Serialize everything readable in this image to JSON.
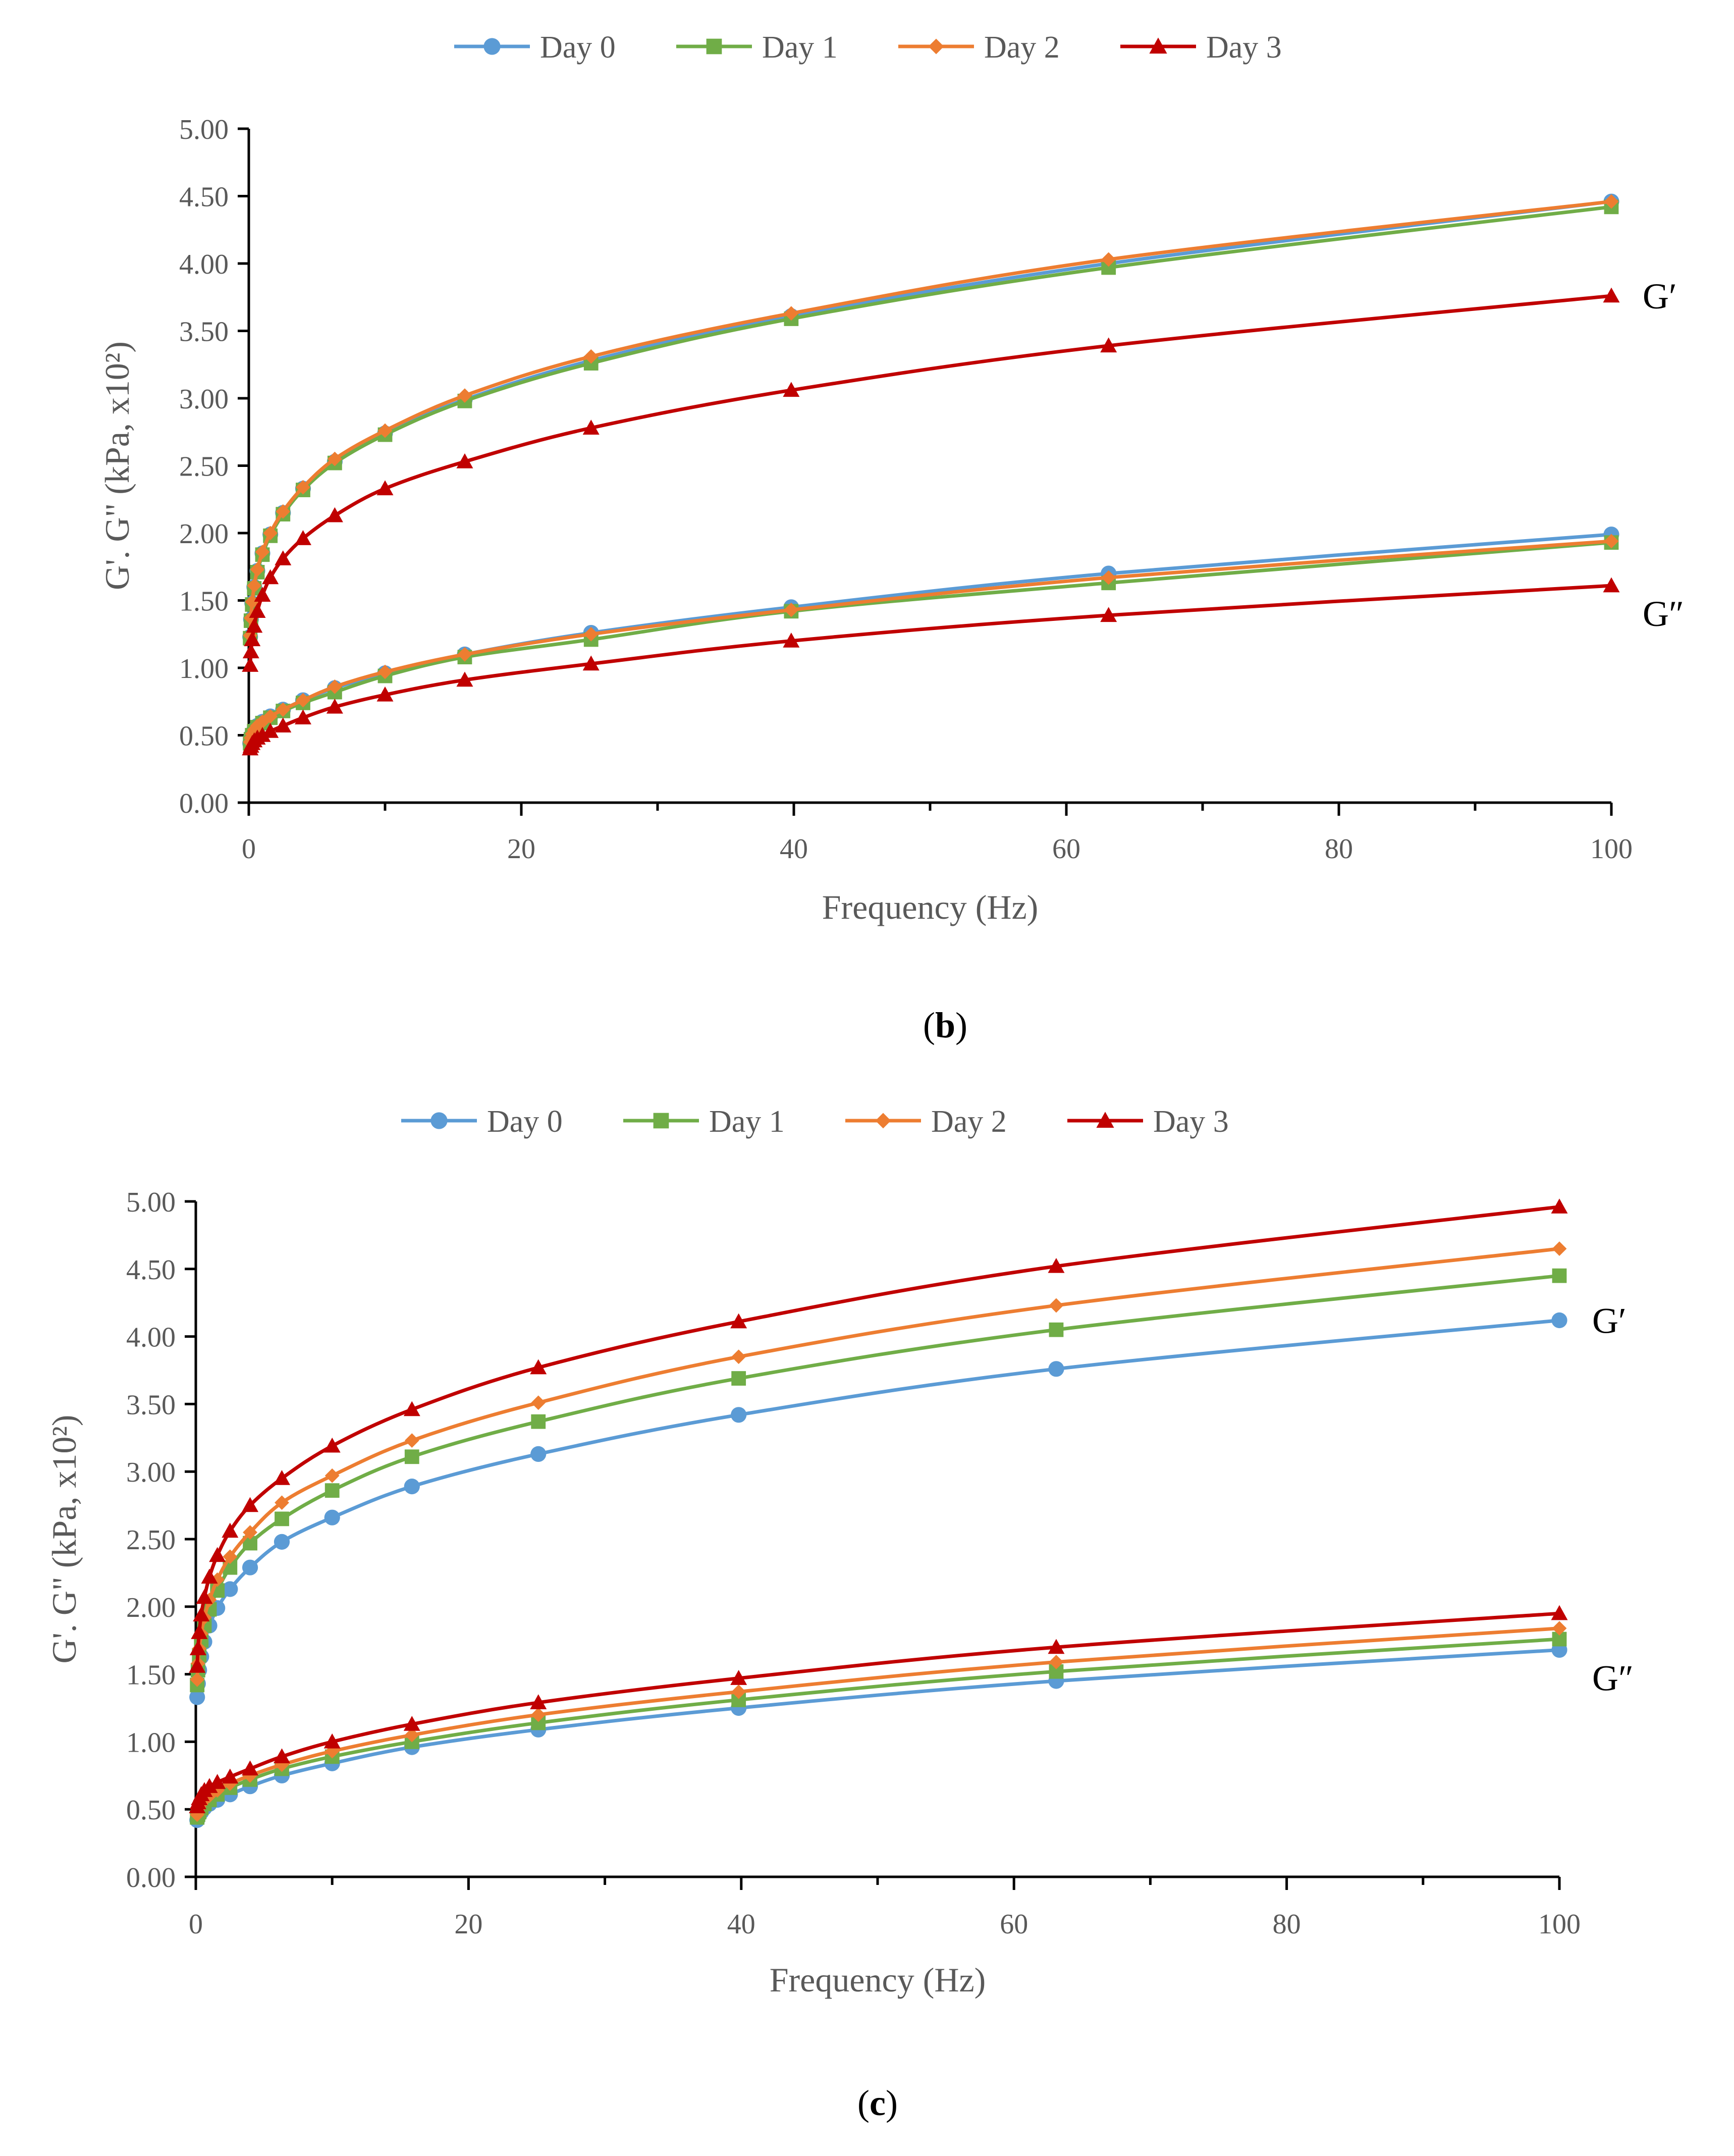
{
  "chart_data": [
    {
      "type": "line",
      "panel": "b",
      "caption_open": "(",
      "caption_letter": "b",
      "caption_close": ")",
      "xlabel": "Frequency (Hz)",
      "ylabel": "G'. G\" (kPa, x10²)",
      "xlim": [
        0,
        100
      ],
      "ylim": [
        0,
        5
      ],
      "xticks": [
        "0",
        "20",
        "40",
        "60",
        "80",
        "100"
      ],
      "yticks": [
        "0.00",
        "0.50",
        "1.00",
        "1.50",
        "2.00",
        "2.50",
        "3.00",
        "3.50",
        "4.00",
        "4.50",
        "5.00"
      ],
      "x": [
        0.1,
        0.16,
        0.25,
        0.4,
        0.63,
        1.0,
        1.58,
        2.51,
        3.98,
        6.31,
        10.0,
        15.85,
        25.12,
        39.81,
        63.1,
        100.0
      ],
      "curve_labels": {
        "g_prime": "G′",
        "g_double_prime": "G″"
      },
      "series": [
        {
          "name": "Day 0",
          "color": "#5B9BD5",
          "marker": "circle",
          "g_prime": [
            1.23,
            1.36,
            1.48,
            1.6,
            1.72,
            1.85,
            1.99,
            2.15,
            2.33,
            2.53,
            2.74,
            2.99,
            3.28,
            3.61,
            4.0,
            4.46
          ],
          "g_double_prime": [
            0.44,
            0.48,
            0.51,
            0.54,
            0.57,
            0.6,
            0.64,
            0.69,
            0.76,
            0.85,
            0.96,
            1.1,
            1.26,
            1.45,
            1.7,
            1.99
          ]
        },
        {
          "name": "Day 1",
          "color": "#70AD47",
          "marker": "square",
          "g_prime": [
            1.22,
            1.35,
            1.47,
            1.59,
            1.71,
            1.84,
            1.98,
            2.14,
            2.32,
            2.52,
            2.73,
            2.98,
            3.26,
            3.59,
            3.97,
            4.42
          ],
          "g_double_prime": [
            0.44,
            0.47,
            0.5,
            0.53,
            0.56,
            0.59,
            0.63,
            0.68,
            0.74,
            0.82,
            0.94,
            1.08,
            1.21,
            1.42,
            1.63,
            1.93
          ]
        },
        {
          "name": "Day 2",
          "color": "#ED7D31",
          "marker": "diamond",
          "g_prime": [
            1.24,
            1.37,
            1.49,
            1.61,
            1.73,
            1.86,
            2.0,
            2.16,
            2.34,
            2.55,
            2.76,
            3.02,
            3.31,
            3.63,
            4.03,
            4.46
          ],
          "g_double_prime": [
            0.45,
            0.48,
            0.51,
            0.54,
            0.57,
            0.6,
            0.64,
            0.69,
            0.76,
            0.86,
            0.97,
            1.1,
            1.25,
            1.43,
            1.67,
            1.94
          ]
        },
        {
          "name": "Day 3",
          "color": "#C00000",
          "marker": "triangle",
          "g_prime": [
            1.02,
            1.12,
            1.21,
            1.31,
            1.42,
            1.54,
            1.67,
            1.81,
            1.96,
            2.13,
            2.33,
            2.53,
            2.78,
            3.06,
            3.39,
            3.76
          ],
          "g_double_prime": [
            0.4,
            0.42,
            0.44,
            0.46,
            0.48,
            0.5,
            0.53,
            0.57,
            0.63,
            0.71,
            0.8,
            0.91,
            1.03,
            1.2,
            1.39,
            1.61
          ]
        }
      ]
    },
    {
      "type": "line",
      "panel": "c",
      "caption_open": "(",
      "caption_letter": "c",
      "caption_close": ")",
      "xlabel": "Frequency (Hz)",
      "ylabel": "G'. G\" (kPa, x10²)",
      "xlim": [
        0,
        100
      ],
      "ylim": [
        0,
        5
      ],
      "xticks": [
        "0",
        "20",
        "40",
        "60",
        "80",
        "100"
      ],
      "yticks": [
        "0.00",
        "0.50",
        "1.00",
        "1.50",
        "2.00",
        "2.50",
        "3.00",
        "3.50",
        "4.00",
        "4.50",
        "5.00"
      ],
      "x": [
        0.1,
        0.16,
        0.25,
        0.4,
        0.63,
        1.0,
        1.58,
        2.51,
        3.98,
        6.31,
        10.0,
        15.85,
        25.12,
        39.81,
        63.1,
        100.0
      ],
      "curve_labels": {
        "g_prime": "G′",
        "g_double_prime": "G″"
      },
      "series": [
        {
          "name": "Day 0",
          "color": "#5B9BD5",
          "marker": "circle",
          "g_prime": [
            1.33,
            1.43,
            1.53,
            1.63,
            1.74,
            1.86,
            1.99,
            2.13,
            2.29,
            2.48,
            2.66,
            2.89,
            3.13,
            3.42,
            3.76,
            4.12
          ],
          "g_double_prime": [
            0.42,
            0.44,
            0.46,
            0.48,
            0.51,
            0.54,
            0.57,
            0.61,
            0.67,
            0.75,
            0.84,
            0.96,
            1.09,
            1.25,
            1.45,
            1.68
          ]
        },
        {
          "name": "Day 1",
          "color": "#70AD47",
          "marker": "square",
          "g_prime": [
            1.42,
            1.53,
            1.64,
            1.75,
            1.86,
            1.98,
            2.12,
            2.29,
            2.47,
            2.65,
            2.86,
            3.11,
            3.37,
            3.69,
            4.05,
            4.45
          ],
          "g_double_prime": [
            0.44,
            0.46,
            0.48,
            0.51,
            0.54,
            0.57,
            0.61,
            0.66,
            0.72,
            0.8,
            0.89,
            1.0,
            1.14,
            1.31,
            1.52,
            1.76
          ]
        },
        {
          "name": "Day 2",
          "color": "#ED7D31",
          "marker": "diamond",
          "g_prime": [
            1.46,
            1.58,
            1.69,
            1.8,
            1.92,
            2.05,
            2.2,
            2.37,
            2.55,
            2.77,
            2.97,
            3.23,
            3.51,
            3.85,
            4.23,
            4.65
          ],
          "g_double_prime": [
            0.46,
            0.48,
            0.51,
            0.54,
            0.57,
            0.6,
            0.64,
            0.69,
            0.75,
            0.83,
            0.93,
            1.05,
            1.2,
            1.37,
            1.59,
            1.84
          ]
        },
        {
          "name": "Day 3",
          "color": "#C00000",
          "marker": "triangle",
          "g_prime": [
            1.56,
            1.69,
            1.81,
            1.94,
            2.07,
            2.22,
            2.38,
            2.56,
            2.75,
            2.95,
            3.19,
            3.46,
            3.77,
            4.11,
            4.52,
            4.96
          ],
          "g_double_prime": [
            0.52,
            0.55,
            0.58,
            0.61,
            0.64,
            0.67,
            0.7,
            0.74,
            0.8,
            0.89,
            1.0,
            1.13,
            1.29,
            1.47,
            1.7,
            1.95
          ]
        }
      ]
    }
  ]
}
